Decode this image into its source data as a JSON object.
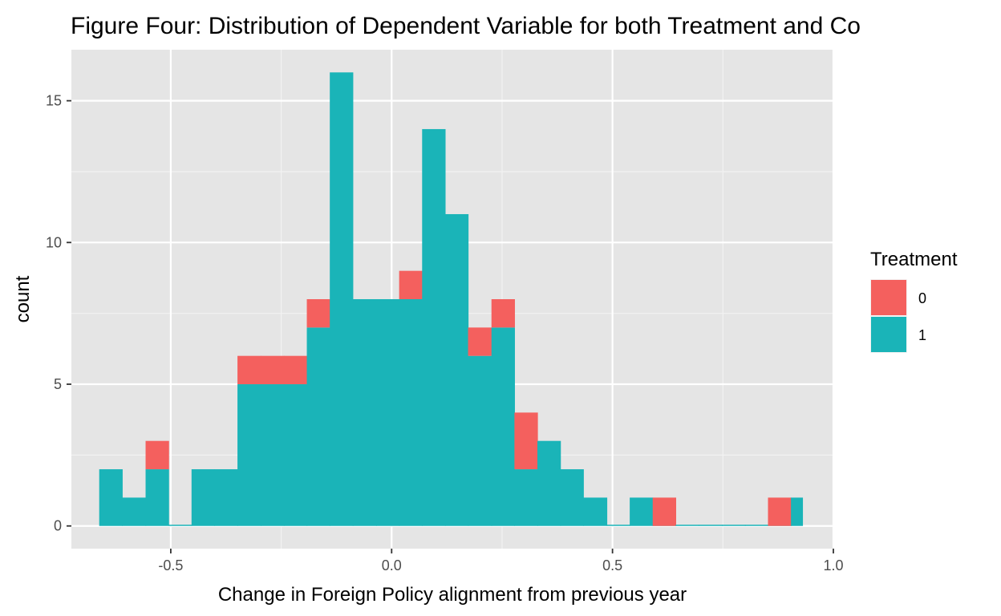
{
  "chart_data": {
    "type": "bar",
    "subtype": "stacked-histogram",
    "title": "Figure Four: Distribution of Dependent Variable for both Treatment and Co",
    "xlabel": "Change in Foreign Policy alignment from previous year",
    "ylabel": "count",
    "xlim": [
      -0.725,
      1.0
    ],
    "ylim": [
      -0.8,
      16.8
    ],
    "x_ticks": [
      -0.5,
      0.0,
      0.5,
      1.0
    ],
    "x_tick_labels": [
      "-0.5",
      "0.0",
      "0.5",
      "1.0"
    ],
    "y_ticks": [
      0,
      5,
      10,
      15
    ],
    "y_tick_labels": [
      "0",
      "5",
      "10",
      "15"
    ],
    "grid": true,
    "legend": {
      "title": "Treatment",
      "position": "right"
    },
    "bin_edges": [
      -0.662,
      -0.61,
      -0.557,
      -0.505,
      -0.453,
      -0.401,
      -0.349,
      -0.296,
      -0.244,
      -0.192,
      -0.14,
      -0.088,
      -0.035,
      0.017,
      0.069,
      0.121,
      0.173,
      0.226,
      0.278,
      0.33,
      0.382,
      0.434,
      0.487,
      0.539,
      0.591,
      0.643,
      0.695,
      0.748,
      0.8,
      0.852,
      0.904,
      0.93
    ],
    "series": [
      {
        "name": "1",
        "color": "#1ab4b8",
        "values": [
          2,
          1,
          2,
          0,
          2,
          2,
          5,
          5,
          5,
          7,
          16,
          8,
          8,
          8,
          14,
          11,
          6,
          7,
          2,
          3,
          2,
          1,
          0,
          1,
          0,
          0,
          0,
          0,
          0,
          0,
          1
        ]
      },
      {
        "name": "0",
        "color": "#f4605e",
        "values": [
          0,
          0,
          1,
          0,
          0,
          0,
          1,
          1,
          1,
          1,
          0,
          0,
          0,
          1,
          0,
          0,
          1,
          1,
          2,
          0,
          0,
          0,
          0,
          0,
          1,
          0,
          0,
          0,
          0,
          1,
          0
        ]
      }
    ]
  }
}
